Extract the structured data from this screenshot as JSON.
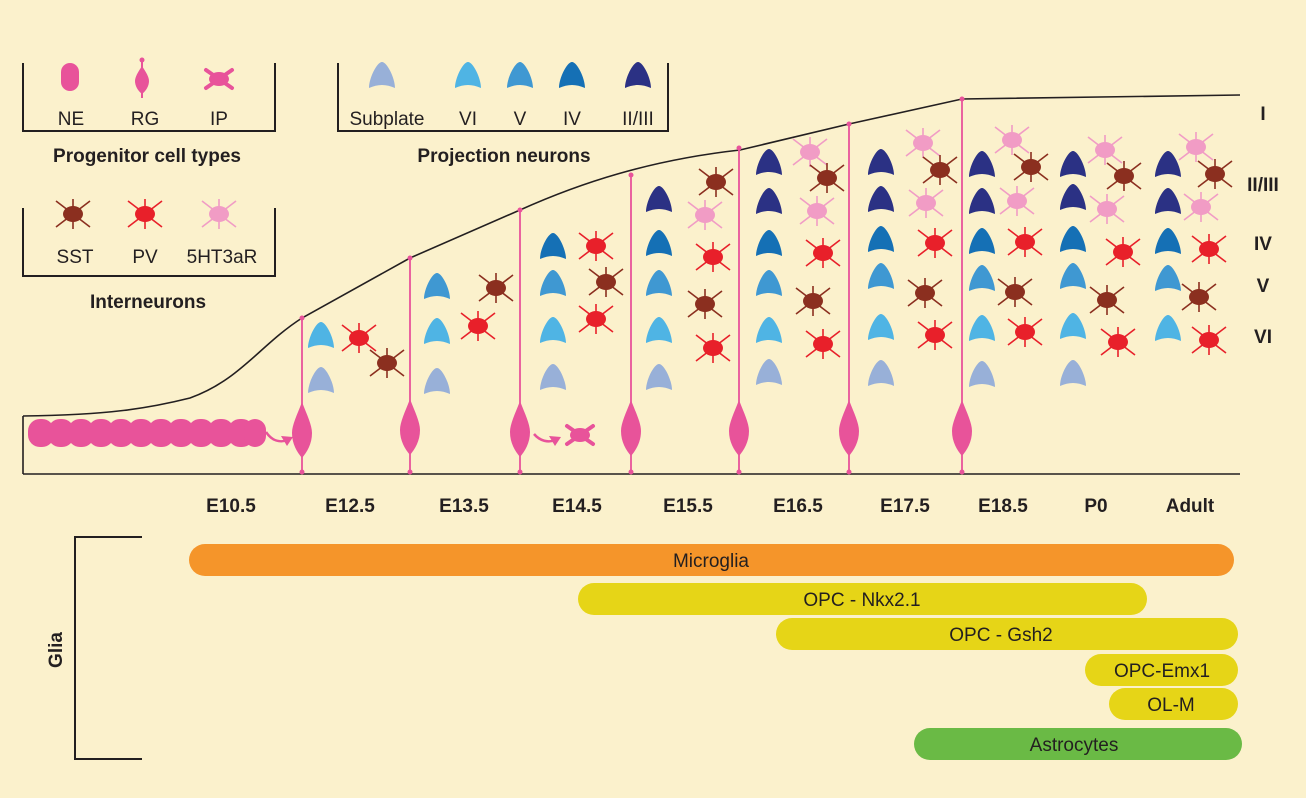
{
  "colors": {
    "background": "#fbf1cc",
    "progenitor": "#e8539a",
    "subplate": "#98b0d8",
    "layer_VI": "#4fb4e4",
    "layer_V": "#3f98d2",
    "layer_IV": "#1570b5",
    "layer_II_III": "#2b3184",
    "SST": "#8b2f1f",
    "PV": "#e8202a",
    "5HT3aR": "#f19cc5",
    "microglia": "#f5952a",
    "opc": "#e6d517",
    "astrocytes": "#6aba45"
  },
  "legends": {
    "progenitor": {
      "title": "Progenitor cell types",
      "items": [
        {
          "label": "NE",
          "icon": "ne-cell-icon"
        },
        {
          "label": "RG",
          "icon": "rg-cell-icon"
        },
        {
          "label": "IP",
          "icon": "ip-cell-icon"
        }
      ]
    },
    "projection": {
      "title": "Projection neurons",
      "items": [
        {
          "label": "Subplate",
          "icon": "subplate-neuron-icon"
        },
        {
          "label": "VI",
          "icon": "layer-vi-neuron-icon"
        },
        {
          "label": "V",
          "icon": "layer-v-neuron-icon"
        },
        {
          "label": "IV",
          "icon": "layer-iv-neuron-icon"
        },
        {
          "label": "II/III",
          "icon": "layer-ii-iii-neuron-icon"
        }
      ]
    },
    "interneurons": {
      "title": "Interneurons",
      "items": [
        {
          "label": "SST",
          "icon": "sst-interneuron-icon"
        },
        {
          "label": "PV",
          "icon": "pv-interneuron-icon"
        },
        {
          "label": "5HT3aR",
          "icon": "5ht3ar-interneuron-icon"
        }
      ]
    }
  },
  "layers": [
    "I",
    "II/III",
    "IV",
    "V",
    "VI"
  ],
  "stages": [
    "E10.5",
    "E12.5",
    "E13.5",
    "E14.5",
    "E15.5",
    "E16.5",
    "E17.5",
    "E18.5",
    "P0",
    "Adult"
  ],
  "glia": {
    "label": "Glia",
    "bars": [
      {
        "label": "Microglia",
        "color": "#f5952a",
        "start": "E10.5",
        "end": "Adult"
      },
      {
        "label": "OPC - Nkx2.1",
        "color": "#e6d517",
        "start": "E14.5",
        "end": "P0"
      },
      {
        "label": "OPC - Gsh2",
        "color": "#e6d517",
        "start": "E16.5",
        "end": "Adult"
      },
      {
        "label": "OPC-Emx1",
        "color": "#e6d517",
        "start": "P0",
        "end": "Adult"
      },
      {
        "label": "OL-M",
        "color": "#e6d517",
        "start": "P0",
        "end": "Adult"
      },
      {
        "label": "Astrocytes",
        "color": "#6aba45",
        "start": "E17.5",
        "end": "Adult"
      }
    ]
  }
}
